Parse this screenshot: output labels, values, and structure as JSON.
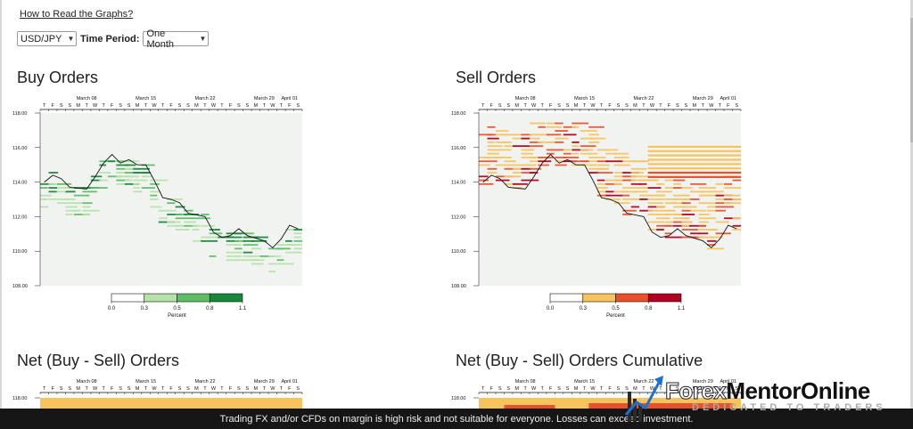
{
  "help_link": "How to Read the Graphs?",
  "controls": {
    "pair": "USD/JPY",
    "period_label": "Time Period:",
    "period": "One Month"
  },
  "panels": {
    "buy": {
      "title": "Buy Orders",
      "legend_title": "Percent"
    },
    "sell": {
      "title": "Sell Orders",
      "legend_title": "Percent"
    },
    "net": {
      "title": "Net (Buy - Sell) Orders"
    },
    "net_cum": {
      "title": "Net (Buy - Sell) Orders Cumulative"
    }
  },
  "axis": {
    "month_labels": [
      "March 08",
      "March 15",
      "March 22",
      "March 29",
      "April 01"
    ],
    "day_letters": [
      "T",
      "F",
      "S",
      "S",
      "M",
      "T",
      "W",
      "T",
      "F",
      "S",
      "S",
      "M",
      "T",
      "W",
      "T",
      "F",
      "S",
      "S",
      "M",
      "T",
      "W",
      "T",
      "F",
      "S",
      "S",
      "M",
      "T",
      "W",
      "T",
      "F",
      "S"
    ],
    "price_ticks": [
      "118.00",
      "116.00",
      "114.00",
      "112.00",
      "110.00",
      "108.00"
    ]
  },
  "legend": {
    "ticks": [
      "0.0",
      "0.3",
      "0.5",
      "0.8",
      "1.1"
    ],
    "buy_colors": [
      "#ffffff",
      "#b5e2a9",
      "#5cbd65",
      "#17873a"
    ],
    "sell_colors": [
      "#ffffff",
      "#f7c35c",
      "#e9512c",
      "#b10021"
    ]
  },
  "price_line": [
    {
      "day": 0,
      "price": 114.0
    },
    {
      "day": 1,
      "price": 114.4
    },
    {
      "day": 2,
      "price": 114.2
    },
    {
      "day": 3,
      "price": 113.7
    },
    {
      "day": 5,
      "price": 113.6
    },
    {
      "day": 6,
      "price": 114.3
    },
    {
      "day": 7,
      "price": 115.1
    },
    {
      "day": 8,
      "price": 115.6
    },
    {
      "day": 9,
      "price": 115.1
    },
    {
      "day": 10,
      "price": 115.3
    },
    {
      "day": 11,
      "price": 115.0
    },
    {
      "day": 12,
      "price": 115.0
    },
    {
      "day": 13,
      "price": 114.1
    },
    {
      "day": 14,
      "price": 113.1
    },
    {
      "day": 15,
      "price": 113.0
    },
    {
      "day": 16,
      "price": 112.8
    },
    {
      "day": 17,
      "price": 112.2
    },
    {
      "day": 19,
      "price": 112.0
    },
    {
      "day": 20,
      "price": 111.1
    },
    {
      "day": 21,
      "price": 110.8
    },
    {
      "day": 22,
      "price": 110.9
    },
    {
      "day": 23,
      "price": 111.3
    },
    {
      "day": 24,
      "price": 110.9
    },
    {
      "day": 26,
      "price": 110.6
    },
    {
      "day": 27,
      "price": 110.2
    },
    {
      "day": 28,
      "price": 110.7
    },
    {
      "day": 29,
      "price": 111.5
    },
    {
      "day": 30,
      "price": 111.3
    }
  ],
  "disclaimer": "Trading FX and/or CFDs on margin is high risk and not suitable for everyone. Losses can exceed investment.",
  "logo": {
    "word1": "Forex",
    "word2": "Mentor",
    "word3": "Online",
    "tagline": "DEDICATED TO TRADERS"
  },
  "colors": {
    "net_fill": "#f7c35c",
    "net_fill_red": "#e9512c"
  }
}
